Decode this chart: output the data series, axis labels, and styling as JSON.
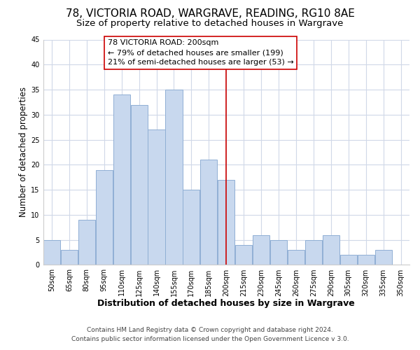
{
  "title": "78, VICTORIA ROAD, WARGRAVE, READING, RG10 8AE",
  "subtitle": "Size of property relative to detached houses in Wargrave",
  "xlabel": "Distribution of detached houses by size in Wargrave",
  "ylabel": "Number of detached properties",
  "footer_line1": "Contains HM Land Registry data © Crown copyright and database right 2024.",
  "footer_line2": "Contains public sector information licensed under the Open Government Licence v 3.0.",
  "bin_labels": [
    "50sqm",
    "65sqm",
    "80sqm",
    "95sqm",
    "110sqm",
    "125sqm",
    "140sqm",
    "155sqm",
    "170sqm",
    "185sqm",
    "200sqm",
    "215sqm",
    "230sqm",
    "245sqm",
    "260sqm",
    "275sqm",
    "290sqm",
    "305sqm",
    "320sqm",
    "335sqm",
    "350sqm"
  ],
  "bar_values": [
    5,
    3,
    9,
    19,
    34,
    32,
    27,
    35,
    15,
    21,
    17,
    4,
    6,
    5,
    3,
    5,
    6,
    2,
    2,
    3,
    0
  ],
  "bar_color": "#c8d8ee",
  "bar_edge_color": "#90afd4",
  "vline_x_index": 10,
  "vline_color": "#cc0000",
  "annotation_line1": "78 VICTORIA ROAD: 200sqm",
  "annotation_line2": "← 79% of detached houses are smaller (199)",
  "annotation_line3": "21% of semi-detached houses are larger (53) →",
  "ylim": [
    0,
    45
  ],
  "yticks": [
    0,
    5,
    10,
    15,
    20,
    25,
    30,
    35,
    40,
    45
  ],
  "figure_bg": "#ffffff",
  "axes_bg": "#ffffff",
  "grid_color": "#d0d8e8",
  "title_fontsize": 11,
  "subtitle_fontsize": 9.5,
  "xlabel_fontsize": 9,
  "ylabel_fontsize": 8.5,
  "tick_fontsize": 7,
  "annotation_fontsize": 8,
  "footer_fontsize": 6.5
}
